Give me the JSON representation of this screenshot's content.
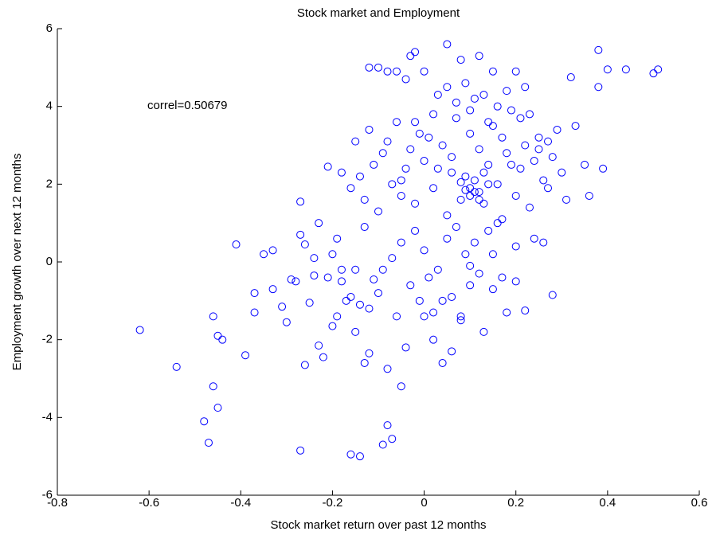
{
  "chart_data": {
    "type": "scatter",
    "title": "Stock market and Employment",
    "xlabel": "Stock market return over past 12 months",
    "ylabel": "Employment growth over next 12 months",
    "annotation": "correl=0.50679",
    "color": "#0000ff",
    "xlim": [
      -0.8,
      0.6
    ],
    "ylim": [
      -6,
      6
    ],
    "xticks": [
      -0.8,
      -0.6,
      -0.4,
      -0.2,
      0,
      0.2,
      0.4,
      0.6
    ],
    "yticks": [
      -6,
      -4,
      -2,
      0,
      2,
      4,
      6
    ],
    "x": [
      -0.62,
      -0.54,
      -0.48,
      -0.47,
      -0.46,
      -0.45,
      -0.45,
      -0.44,
      -0.46,
      -0.41,
      -0.39,
      -0.37,
      -0.37,
      -0.35,
      -0.33,
      -0.27,
      -0.27,
      -0.21,
      -0.16,
      -0.14,
      -0.09,
      -0.08,
      -0.07,
      0.5,
      0.51,
      0.44,
      0.38,
      0.38,
      0.4,
      0.05,
      -0.02,
      -0.03,
      -0.1,
      -0.12,
      0.33,
      0.36,
      0.39,
      0.35,
      0.32,
      -0.33,
      -0.31,
      -0.3,
      -0.28,
      -0.27,
      -0.26,
      -0.25,
      -0.24,
      -0.23,
      -0.22,
      -0.23,
      -0.2,
      -0.19,
      -0.18,
      -0.17,
      -0.15,
      -0.14,
      -0.13,
      -0.12,
      -0.11,
      -0.1,
      -0.2,
      -0.19,
      -0.18,
      -0.16,
      -0.15,
      -0.14,
      -0.13,
      -0.12,
      -0.11,
      -0.1,
      -0.09,
      -0.08,
      -0.07,
      -0.06,
      -0.05,
      -0.04,
      -0.03,
      -0.02,
      -0.01,
      0,
      -0.09,
      -0.07,
      -0.06,
      -0.05,
      -0.04,
      -0.03,
      -0.02,
      -0.01,
      0,
      0.01,
      0.02,
      0.03,
      0.04,
      0.05,
      0.06,
      0.07,
      0.08,
      0.09,
      0.1,
      0.11,
      0.12,
      0.13,
      0.14,
      0.15,
      0.16,
      0.17,
      0.18,
      0.19,
      0.2,
      0.21,
      0.22,
      0.23,
      0.24,
      0.25,
      0.26,
      0.27,
      0.28,
      0.29,
      0.3,
      0.31,
      0.02,
      0.03,
      0.04,
      0.05,
      0.06,
      0.07,
      0.08,
      0.09,
      0.1,
      0.11,
      0.12,
      0.13,
      0.14,
      0.15,
      0.16,
      0.18,
      0.2,
      0.22,
      0.24,
      0.28,
      0.05,
      0.07,
      0.09,
      0.1,
      0.12,
      0.13,
      0.15,
      0.16,
      0.18,
      0.2,
      0.22,
      0.23,
      0.08,
      0.11,
      0.14,
      0.17,
      0.19,
      0.21,
      0.25,
      0.27,
      0.1,
      0.11,
      0.12,
      0.13,
      0.1,
      0.09,
      0.14,
      0.08,
      0.12,
      0.06,
      -0.06,
      -0.04,
      -0.08,
      0,
      0.02,
      -0.02,
      0.03,
      0.01,
      -0.05,
      -0.13,
      -0.12,
      -0.15,
      -0.16,
      -0.18,
      -0.21,
      -0.24,
      -0.29,
      -0.26,
      -0.08,
      -0.05,
      0,
      0.02,
      0.04,
      0.06,
      0.08,
      0.1,
      0.15,
      0.17,
      0.2,
      0.26
    ],
    "values": [
      -1.75,
      -2.7,
      -4.1,
      -4.65,
      -3.2,
      -3.75,
      -1.9,
      -2.0,
      -1.4,
      0.45,
      -2.4,
      -0.8,
      -1.3,
      0.2,
      0.3,
      -4.85,
      1.55,
      2.45,
      -4.95,
      -5.0,
      -4.7,
      -4.2,
      -4.55,
      4.85,
      4.95,
      4.95,
      5.45,
      4.5,
      4.95,
      5.6,
      5.4,
      5.3,
      5.0,
      5.0,
      3.5,
      1.7,
      2.4,
      2.5,
      4.75,
      -0.7,
      -1.15,
      -1.55,
      -0.5,
      0.7,
      0.45,
      -1.05,
      -0.35,
      1.0,
      -2.45,
      -2.15,
      -1.65,
      -1.4,
      -0.5,
      -1.0,
      -1.8,
      -1.1,
      -2.6,
      -2.35,
      -0.45,
      -0.8,
      0.2,
      0.6,
      2.3,
      1.9,
      3.1,
      2.2,
      1.6,
      3.4,
      2.5,
      1.3,
      2.8,
      3.1,
      2.0,
      3.6,
      1.7,
      2.4,
      2.9,
      1.5,
      3.3,
      2.6,
      -0.2,
      0.1,
      -1.4,
      0.5,
      -2.2,
      -0.6,
      0.8,
      -1.0,
      0.3,
      -0.4,
      1.9,
      2.4,
      3.0,
      1.2,
      2.7,
      3.7,
      1.6,
      2.2,
      3.3,
      1.8,
      2.9,
      1.5,
      2.5,
      3.5,
      2.0,
      1.1,
      2.8,
      3.9,
      1.7,
      2.4,
      3.0,
      1.4,
      2.6,
      3.2,
      2.1,
      1.9,
      2.7,
      3.4,
      2.3,
      1.6,
      -1.3,
      -0.2,
      -2.6,
      0.6,
      -0.9,
      0.9,
      -1.5,
      0.2,
      -0.6,
      0.5,
      -0.3,
      -1.8,
      0.8,
      -0.7,
      1.0,
      -1.3,
      0.4,
      -1.25,
      0.6,
      -0.85,
      4.5,
      4.1,
      4.6,
      3.9,
      5.3,
      4.3,
      4.9,
      4.0,
      4.4,
      4.9,
      4.5,
      3.8,
      5.2,
      4.2,
      3.6,
      3.2,
      2.5,
      3.7,
      2.9,
      3.1,
      1.9,
      2.1,
      1.8,
      2.3,
      1.7,
      1.85,
      2.0,
      2.05,
      1.6,
      2.3,
      4.9,
      4.7,
      4.9,
      4.9,
      3.8,
      3.6,
      4.3,
      3.2,
      2.1,
      0.9,
      -1.2,
      -0.2,
      -0.9,
      -0.2,
      -0.4,
      0.1,
      -0.45,
      -2.65,
      -2.75,
      -3.2,
      -1.4,
      -2.0,
      -1.0,
      -2.3,
      -1.4,
      -0.1,
      0.2,
      -0.4,
      -0.5,
      0.5
    ]
  }
}
